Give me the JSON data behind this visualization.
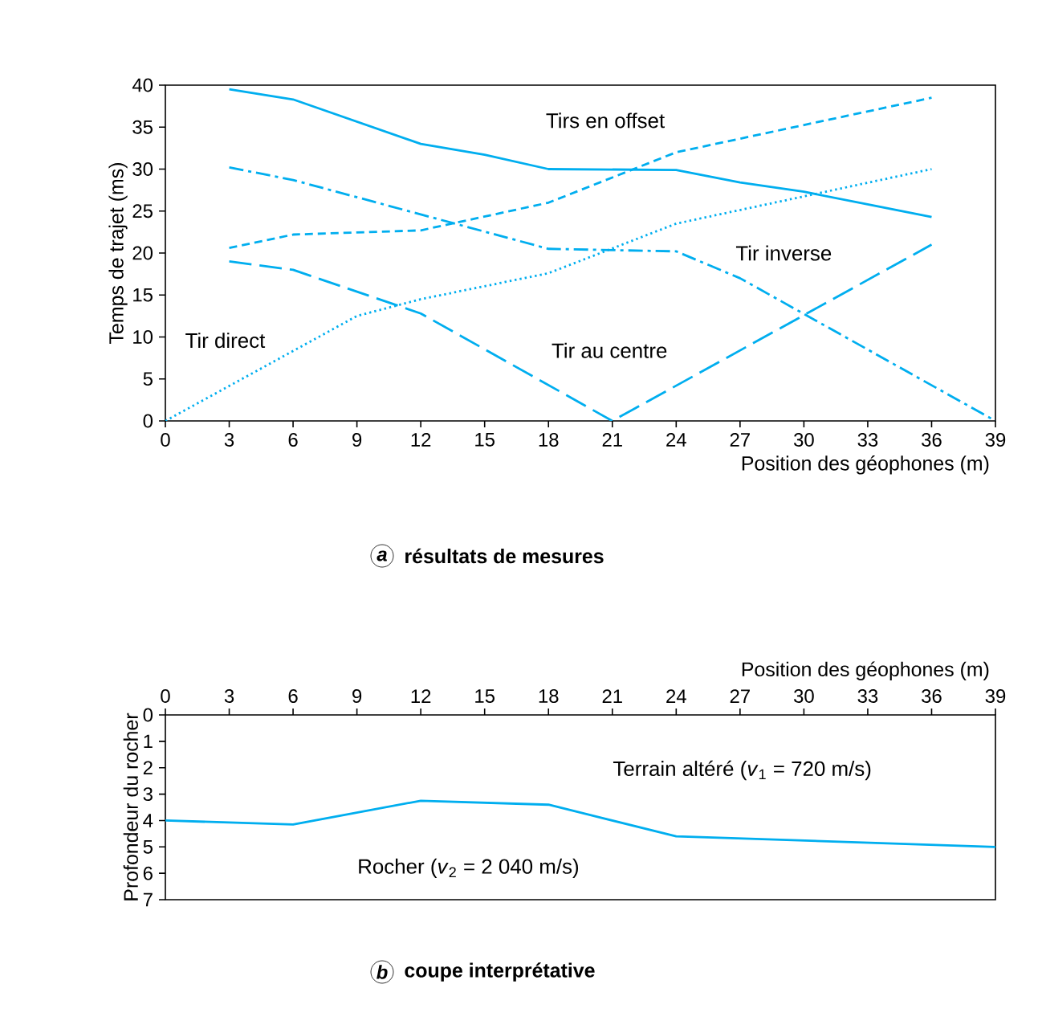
{
  "chart_data": [
    {
      "type": "line",
      "title": "résultats de mesures",
      "subtitle": "a",
      "xlabel": "Position des géophones (m)",
      "ylabel": "Temps de trajet (ms)",
      "xlim": [
        0,
        39
      ],
      "xticks": [
        0,
        3,
        6,
        9,
        12,
        15,
        18,
        21,
        24,
        27,
        30,
        33,
        36,
        39
      ],
      "ylim": [
        0,
        40
      ],
      "yticks": [
        0,
        5,
        10,
        15,
        20,
        25,
        30,
        35,
        40
      ],
      "grid": false,
      "series": [
        {
          "color": "#00aeef",
          "line_style": "solid",
          "x": [
            3,
            6,
            12,
            15,
            18,
            24,
            27,
            30,
            36
          ],
          "values": [
            39.5,
            38.3,
            33,
            31.7,
            30,
            29.9,
            28.4,
            27.3,
            24.3
          ]
        },
        {
          "color": "#00aeef",
          "line_style": "dashed",
          "x": [
            3,
            6,
            12,
            18,
            24,
            36
          ],
          "values": [
            20.6,
            22.2,
            22.7,
            26,
            32,
            38.5
          ]
        },
        {
          "color": "#00aeef",
          "line_style": "dotted",
          "x": [
            0,
            9,
            12,
            18,
            24,
            36
          ],
          "values": [
            0,
            12.5,
            14.5,
            17.6,
            23.5,
            30
          ]
        },
        {
          "color": "#00aeef",
          "line_style": "dashdot",
          "x": [
            3,
            6,
            18,
            24,
            27,
            39
          ],
          "values": [
            30.2,
            28.7,
            20.5,
            20.2,
            17,
            0
          ]
        },
        {
          "color": "#00aeef",
          "line_style": "longdashed",
          "x": [
            3,
            6,
            12,
            21,
            36
          ],
          "values": [
            19,
            18,
            12.8,
            0,
            21
          ]
        }
      ],
      "annotations": [
        "Tirs en offset",
        "Tir direct",
        "Tir inverse",
        "Tir au centre"
      ]
    },
    {
      "type": "line",
      "title": "coupe interprétative",
      "subtitle": "b",
      "xlabel": "Position des géophones (m)",
      "ylabel": "Profondeur du rocher",
      "xlim": [
        0,
        39
      ],
      "xticks": [
        0,
        3,
        6,
        9,
        12,
        15,
        18,
        21,
        24,
        27,
        30,
        33,
        36,
        39
      ],
      "ylim": [
        7,
        0
      ],
      "yticks": [
        0,
        1,
        2,
        3,
        4,
        5,
        6,
        7
      ],
      "grid": false,
      "series": [
        {
          "color": "#00aeef",
          "line_style": "solid",
          "x": [
            0,
            6,
            12,
            18,
            24,
            39
          ],
          "values": [
            4.0,
            4.15,
            3.25,
            3.4,
            4.6,
            5.0
          ]
        }
      ],
      "annotations": [
        "Terrain altéré (*v*$_{1}$ = 720 m/s)",
        "Rocher (*v*$_{2}$ = 2 040 m/s)"
      ]
    }
  ]
}
